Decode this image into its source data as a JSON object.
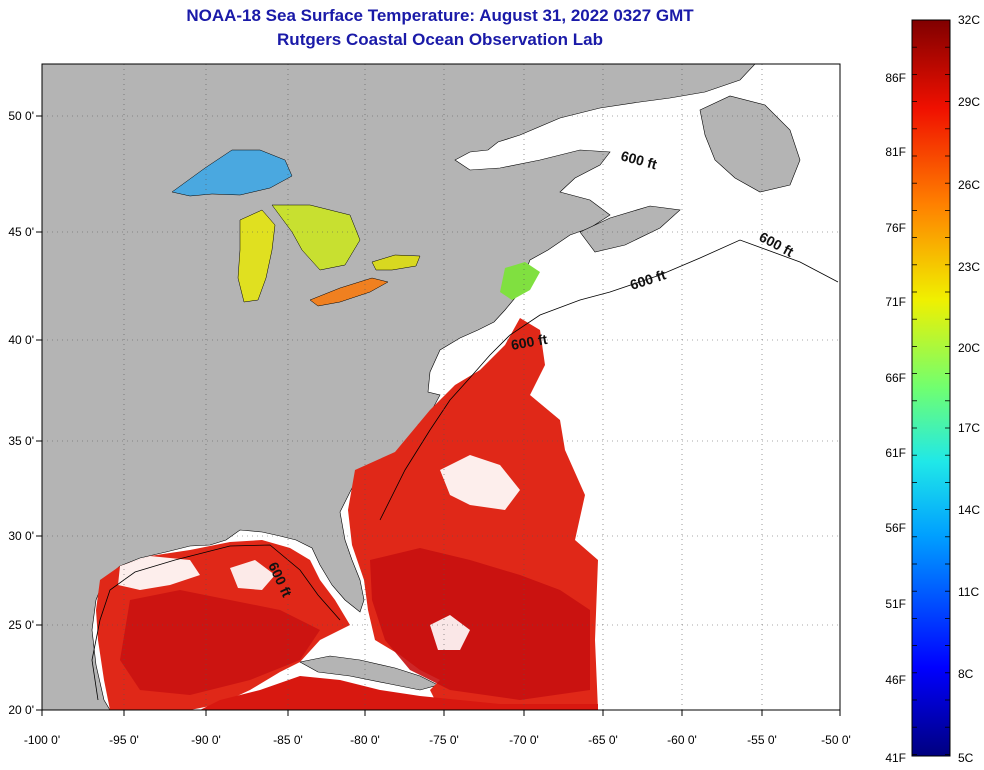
{
  "header": {
    "title": "NOAA-18 Sea Surface Temperature:  August 31, 2022 0327 GMT",
    "subtitle": "Rutgers Coastal Ocean Observation Lab"
  },
  "map": {
    "lon_ticks": [
      "-100 0'",
      "-95 0'",
      "-90 0'",
      "-85 0'",
      "-80 0'",
      "-75 0'",
      "-70 0'",
      "-65 0'",
      "-60 0'",
      "-55 0'",
      "-50 0'"
    ],
    "lat_ticks": [
      "50 0'",
      "45 0'",
      "40 0'",
      "35 0'",
      "30 0'",
      "25 0'",
      "20 0'"
    ],
    "isobath_labels": [
      "600 ft",
      "600 ft",
      "600 ft",
      "600 ft",
      "600 ft"
    ],
    "colors": {
      "land": "#b4b4b4",
      "cloud": "#ffffff",
      "warm_water": "#e02818",
      "hot_water": "#c81010",
      "lake": "#e0e020"
    }
  },
  "colorbar": {
    "celsius_labels": [
      "32C",
      "29C",
      "26C",
      "23C",
      "20C",
      "17C",
      "14C",
      "11C",
      "8C",
      "5C"
    ],
    "fahrenheit_labels": [
      "86F",
      "81F",
      "76F",
      "71F",
      "66F",
      "61F",
      "56F",
      "51F",
      "46F",
      "41F"
    ]
  }
}
